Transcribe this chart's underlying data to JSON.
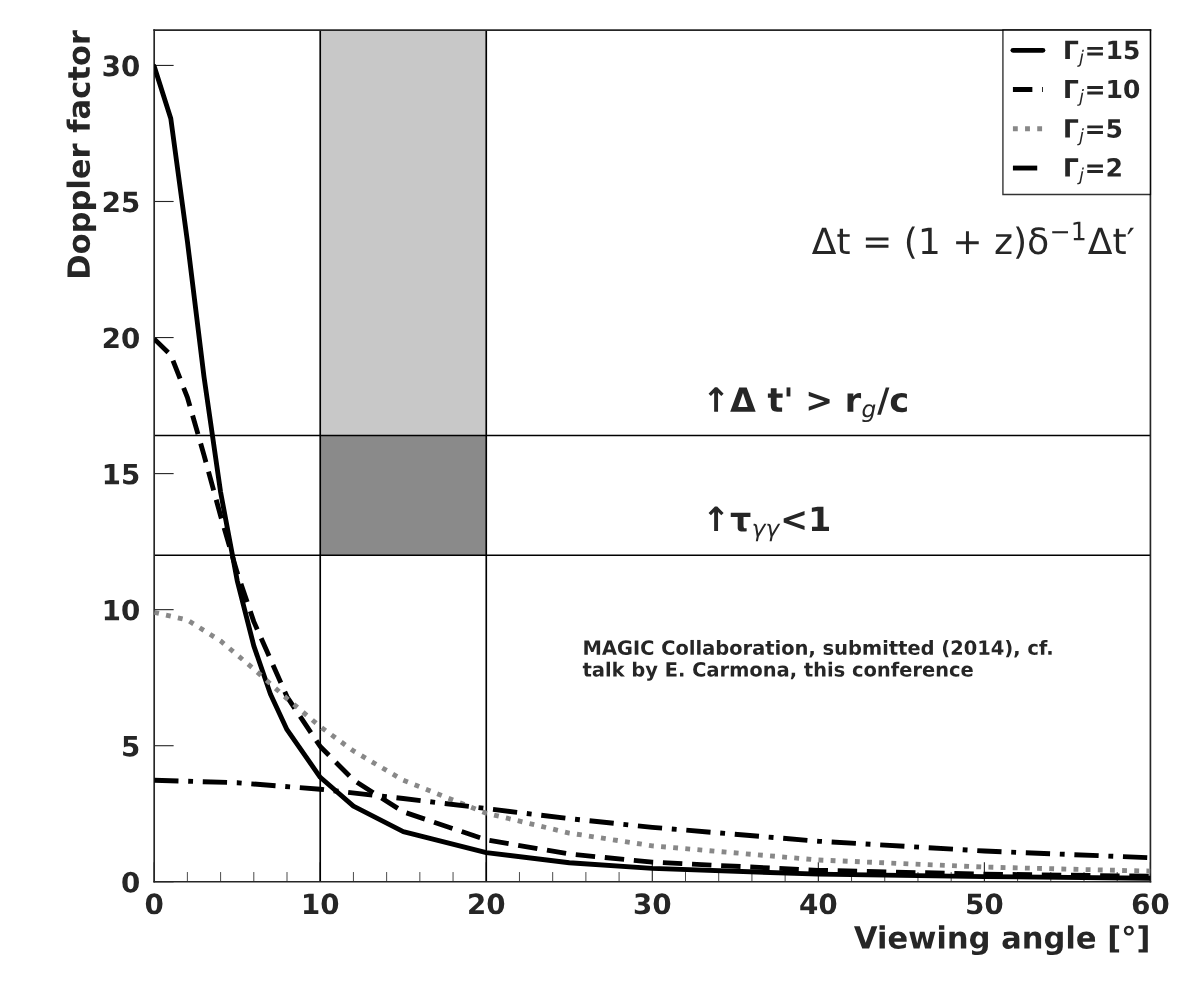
{
  "chart_data": {
    "type": "line",
    "xlabel": "Viewing angle [°]",
    "ylabel": "Doppler factor",
    "xlim": [
      0,
      60
    ],
    "xticks": [
      0,
      10,
      20,
      30,
      40,
      50,
      60
    ],
    "ylim": [
      0,
      31.3
    ],
    "yticks": [
      0,
      5,
      10,
      15,
      20,
      25,
      30
    ],
    "legend": "top right",
    "grid": false,
    "series": [
      {
        "name": "Γ$_{j}$=15",
        "color": "#000000",
        "line_style": "solid",
        "x": [
          0,
          1,
          2,
          3,
          4,
          5,
          6,
          7,
          8,
          10,
          12,
          15,
          20,
          25,
          30,
          40,
          50,
          60
        ],
        "values": [
          29.97,
          28.05,
          23.54,
          18.56,
          14.32,
          11.07,
          8.67,
          6.9,
          5.59,
          3.84,
          2.78,
          1.84,
          1.07,
          0.7,
          0.49,
          0.28,
          0.19,
          0.13
        ]
      },
      {
        "name": "Γ$_{j}$=10",
        "color": "#000000",
        "line_style": "dashed",
        "x": [
          0,
          1,
          2,
          3,
          4,
          5,
          6,
          8,
          10,
          12,
          15,
          20,
          25,
          30,
          40,
          50,
          60
        ],
        "values": [
          19.95,
          19.36,
          17.8,
          15.68,
          13.45,
          11.36,
          9.56,
          6.8,
          4.97,
          3.74,
          2.57,
          1.54,
          1.02,
          0.72,
          0.42,
          0.28,
          0.2
        ]
      },
      {
        "name": "Γ$_{j}$=5",
        "color": "#888888",
        "line_style": "dotted",
        "x": [
          0,
          2,
          4,
          6,
          8,
          10,
          12,
          15,
          20,
          25,
          30,
          40,
          50,
          60
        ],
        "values": [
          9.9,
          9.62,
          8.85,
          7.82,
          6.73,
          5.7,
          4.81,
          3.73,
          2.52,
          1.79,
          1.32,
          0.8,
          0.54,
          0.39
        ]
      },
      {
        "name": "Γ$_{j}$=2",
        "color": "#000000",
        "line_style": "dashdot",
        "x": [
          0,
          5,
          10,
          15,
          20,
          25,
          30,
          40,
          50,
          60
        ],
        "values": [
          3.73,
          3.64,
          3.4,
          3.06,
          2.69,
          2.32,
          2.0,
          1.49,
          1.13,
          0.88
        ]
      },
      {
        "type": "bar",
        "color": "#c8c8c8",
        "x": [
          15
        ],
        "values": [
          14.9
        ],
        "base": [
          16.4
        ]
      },
      {
        "type": "bar",
        "color": "#8a8a8a",
        "x": [
          15
        ],
        "values": [
          4.4
        ],
        "base": [
          12
        ]
      }
    ],
    "ref_lines": [
      {
        "axis": "x",
        "value": 10
      },
      {
        "axis": "x",
        "value": 20
      },
      {
        "axis": "y",
        "value": 16.4
      },
      {
        "axis": "y",
        "value": 12
      }
    ],
    "annotations": [
      "Δt = (1 + z)δ$^{−1}$Δt′",
      "↑Δ t' > r$_{g}$/c",
      "↑τ$_{γγ}$<1",
      "MAGIC Collaboration, submitted (2014), cf.\ntalk by E. Carmona, this conference"
    ]
  }
}
